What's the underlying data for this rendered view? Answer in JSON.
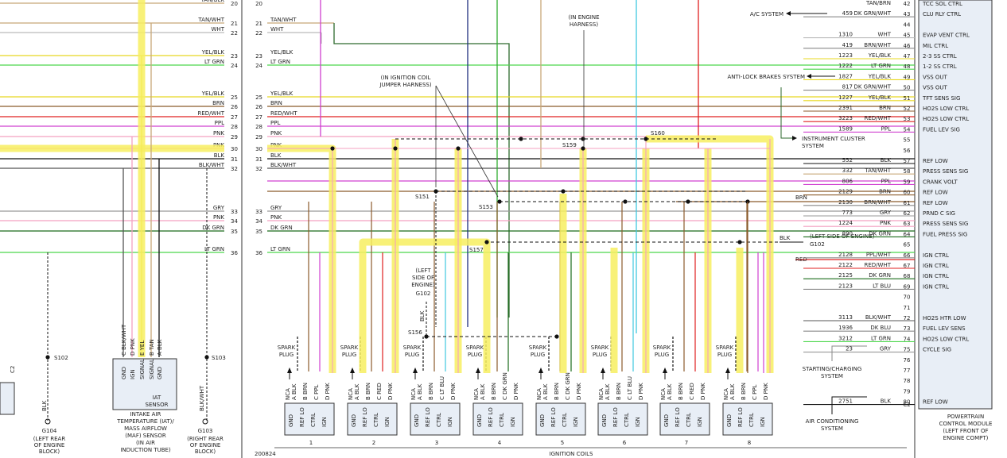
{
  "figure_id": "200824",
  "title": "IGNITION COILS",
  "annotations": {
    "coil_jumper": [
      "(IN IGNITION COIL",
      "JUMPER HARNESS)"
    ],
    "engine_harness": [
      "(IN ENGINE",
      "HARNESS)"
    ],
    "left_side_g102": [
      "(LEFT",
      "SIDE OF",
      "ENGINE)"
    ],
    "left_side_g102_right": "(LEFT SIDE OF ENGINE)"
  },
  "splices": {
    "s151": "S151",
    "s153": "S153",
    "s156": "S156",
    "s157": "S157",
    "s159": "S159",
    "s160": "S160",
    "s102": "S102",
    "s103": "S103"
  },
  "grounds": {
    "g102": "G102",
    "g102r": "G102",
    "g103": "G103",
    "g104": "G104",
    "g103_desc": [
      "(RIGHT REAR",
      "OF ENGINE",
      "BLOCK)"
    ],
    "g104_desc": [
      "(LEFT REAR",
      "OF ENGINE",
      "BLOCK)"
    ]
  },
  "left_panel_wires": [
    {
      "n": "20",
      "color": "TAN/BLK"
    },
    {
      "n": "21",
      "color": "TAN/WHT"
    },
    {
      "n": "22",
      "color": "WHT"
    },
    {
      "n": "23",
      "color": "YEL/BLK"
    },
    {
      "n": "24",
      "color": "LT GRN"
    },
    {
      "n": "25",
      "color": "YEL/BLK"
    },
    {
      "n": "26",
      "color": "BRN"
    },
    {
      "n": "27",
      "color": "RED/WHT"
    },
    {
      "n": "28",
      "color": "PPL"
    },
    {
      "n": "29",
      "color": "PNK"
    },
    {
      "n": "30",
      "color": "PNK"
    },
    {
      "n": "31",
      "color": "BLK"
    },
    {
      "n": "32",
      "color": "BLK/WHT"
    },
    {
      "n": "33",
      "color": "GRY"
    },
    {
      "n": "34",
      "color": "PNK"
    },
    {
      "n": "35",
      "color": "DK GRN"
    },
    {
      "n": "36",
      "color": "LT GRN"
    }
  ],
  "mid_wires": [
    {
      "n": "20",
      "color": ""
    },
    {
      "n": "21",
      "color": "TAN/WHT"
    },
    {
      "n": "22",
      "color": "WHT"
    },
    {
      "n": "23",
      "color": "YEL/BLK"
    },
    {
      "n": "24",
      "color": "LT GRN"
    },
    {
      "n": "25",
      "color": "YEL/BLK"
    },
    {
      "n": "26",
      "color": "BRN"
    },
    {
      "n": "27",
      "color": "RED/WHT"
    },
    {
      "n": "28",
      "color": "PPL"
    },
    {
      "n": "29",
      "color": "PNK"
    },
    {
      "n": "30",
      "color": "PNK"
    },
    {
      "n": "31",
      "color": "BLK"
    },
    {
      "n": "32",
      "color": "BLK/WHT"
    },
    {
      "n": "33",
      "color": "GRY"
    },
    {
      "n": "34",
      "color": "PNK"
    },
    {
      "n": "35",
      "color": "DK GRN"
    },
    {
      "n": "36",
      "color": "LT GRN"
    }
  ],
  "iat_sensor": {
    "pins": [
      "C BLK/WHT",
      "D PNK",
      "E YEL",
      "B TAN",
      "A BLK"
    ],
    "inner": [
      "GND",
      "IGN",
      "SIGNAL",
      "SIGNAL",
      "GND"
    ],
    "label": [
      "IAT",
      "SENSOR"
    ],
    "desc": [
      "INTAKE AIR",
      "TEMPERATURE (IAT)/",
      "MASS AIRFLOW",
      "(MAF) SENSOR",
      "(IN AIR",
      "INDUCTION TUBE)"
    ],
    "c2": "C2"
  },
  "coils": [
    {
      "num": "1",
      "nca": "NCA"
    },
    {
      "num": "2",
      "nca": "NCA"
    },
    {
      "num": "3",
      "nca": "NCA"
    },
    {
      "num": "4",
      "nca": "NCA"
    },
    {
      "num": "5",
      "nca": "NCA"
    },
    {
      "num": "6",
      "nca": "NCA"
    },
    {
      "num": "7",
      "nca": "NCA"
    },
    {
      "num": "8",
      "nca": "NCA"
    }
  ],
  "coil_labels": {
    "spark_plug": [
      "SPARK",
      "PLUG"
    ],
    "inner": [
      "GND",
      "REF LO",
      "CTRL",
      "IGN"
    ],
    "pin_letters": [
      "A",
      "B",
      "C",
      "D"
    ]
  },
  "coil_wires": [
    [
      "BLK",
      "BRN",
      "PPL",
      "PNK"
    ],
    [
      "BLK",
      "BRN",
      "RED",
      "PNK"
    ],
    [
      "BLK",
      "BRN",
      "LT BLU",
      "PNK"
    ],
    [
      "BLK",
      "BRN",
      "DK GRN",
      "PNK"
    ],
    [
      "BLK",
      "BRN",
      "DK GRN",
      "PNK"
    ],
    [
      "BLK",
      "BRN",
      "LT BLU",
      "PNK"
    ],
    [
      "BLK",
      "BRN",
      "RED",
      "PNK"
    ],
    [
      "BLK",
      "BRN",
      "PPL",
      "PNK"
    ]
  ],
  "pcm": {
    "rows": [
      {
        "n": "42",
        "circuit": "",
        "color": "TAN/BRN",
        "name": "TCC SOL CTRL"
      },
      {
        "n": "43",
        "circuit": "459",
        "color": "DK GRN/WHT",
        "name": "CLU RLY CTRL"
      },
      {
        "n": "44",
        "circuit": "",
        "color": "",
        "name": ""
      },
      {
        "n": "45",
        "circuit": "1310",
        "color": "WHT",
        "name": "EVAP VENT CTRL"
      },
      {
        "n": "46",
        "circuit": "419",
        "color": "BRN/WHT",
        "name": "MIL CTRL"
      },
      {
        "n": "47",
        "circuit": "1223",
        "color": "YEL/BLK",
        "name": "2-3 SS CTRL"
      },
      {
        "n": "48",
        "circuit": "1222",
        "color": "LT GRN",
        "name": "1-2 SS CTRL"
      },
      {
        "n": "49",
        "circuit": "1827",
        "color": "YEL/BLK",
        "name": "VSS OUT"
      },
      {
        "n": "50",
        "circuit": "817",
        "color": "DK GRN/WHT",
        "name": "VSS OUT"
      },
      {
        "n": "51",
        "circuit": "1227",
        "color": "YEL/BLK",
        "name": "TFT SENS SIG"
      },
      {
        "n": "52",
        "circuit": "2391",
        "color": "BRN",
        "name": "HO2S LOW CTRL"
      },
      {
        "n": "53",
        "circuit": "3223",
        "color": "RED/WHT",
        "name": "HO2S LOW CTRL"
      },
      {
        "n": "54",
        "circuit": "1589",
        "color": "PPL",
        "name": "FUEL LEV SIG"
      },
      {
        "n": "55",
        "circuit": "",
        "color": "",
        "name": ""
      },
      {
        "n": "56",
        "circuit": "",
        "color": "",
        "name": ""
      },
      {
        "n": "57",
        "circuit": "552",
        "color": "BLK",
        "name": "REF LOW"
      },
      {
        "n": "58",
        "circuit": "332",
        "color": "TAN/WHT",
        "name": "PRESS SENS SIG"
      },
      {
        "n": "59",
        "circuit": "806",
        "color": "PPL",
        "name": "CRANK VOLT"
      },
      {
        "n": "60",
        "circuit": "2129",
        "color": "BRN",
        "name": "REF LOW"
      },
      {
        "n": "61",
        "circuit": "2130",
        "color": "BRN/WHT",
        "name": "REF LOW"
      },
      {
        "n": "62",
        "circuit": "773",
        "color": "GRY",
        "name": "PRND C SIG"
      },
      {
        "n": "63",
        "circuit": "1224",
        "color": "PNK",
        "name": "PRESS SENS SIG"
      },
      {
        "n": "64",
        "circuit": "890",
        "color": "DK GRN",
        "name": "FUEL PRESS SIG"
      },
      {
        "n": "65",
        "circuit": "",
        "color": "",
        "name": ""
      },
      {
        "n": "66",
        "circuit": "2128",
        "color": "PPL/WHT",
        "name": "IGN CTRL"
      },
      {
        "n": "67",
        "circuit": "2122",
        "color": "RED/WHT",
        "name": "IGN CTRL"
      },
      {
        "n": "68",
        "circuit": "2125",
        "color": "DK GRN",
        "name": "IGN CTRL"
      },
      {
        "n": "69",
        "circuit": "2123",
        "color": "LT BLU",
        "name": "IGN CTRL"
      },
      {
        "n": "70",
        "circuit": "",
        "color": "",
        "name": ""
      },
      {
        "n": "71",
        "circuit": "",
        "color": "",
        "name": ""
      },
      {
        "n": "72",
        "circuit": "3113",
        "color": "BLK/WHT",
        "name": "HO2S HTR LOW"
      },
      {
        "n": "73",
        "circuit": "1936",
        "color": "DK BLU",
        "name": "FUEL LEV SENS"
      },
      {
        "n": "74",
        "circuit": "3212",
        "color": "LT GRN",
        "name": "HO2S LOW CTRL"
      },
      {
        "n": "75",
        "circuit": "23",
        "color": "GRY",
        "name": "CYCLE SIG"
      },
      {
        "n": "76",
        "circuit": "",
        "color": "",
        "name": ""
      },
      {
        "n": "77",
        "circuit": "",
        "color": "",
        "name": ""
      },
      {
        "n": "78",
        "circuit": "",
        "color": "",
        "name": ""
      },
      {
        "n": "79",
        "circuit": "",
        "color": "",
        "name": ""
      },
      {
        "n": "80",
        "circuit": "2751",
        "color": "BLK",
        "name": "REF LOW"
      }
    ],
    "connector": "C2",
    "desc": [
      "POWERTRAIN",
      "CONTROL MODULE",
      "(LEFT FRONT OF",
      "ENGINE COMPT)"
    ]
  },
  "external": {
    "ac": "A/C SYSTEM",
    "abs": "ANTI-LOCK BRAKES SYSTEM",
    "cluster": [
      "INSTRUMENT CLUSTER",
      "SYSTEM"
    ],
    "starting": [
      "STARTING/CHARGING",
      "SYSTEM"
    ],
    "aircon": [
      "AIR CONDITIONING",
      "SYSTEM"
    ],
    "blk": "BLK",
    "red": "RED",
    "brn": "BRN"
  },
  "colors": {
    "pink": "#f4a0c0",
    "highlight": "#f7ef60",
    "tan": "#c8a878",
    "brown": "#8b5a2b",
    "green": "#2fae2f",
    "ltgreen": "#4cd64c",
    "dkgreen": "#1a6b1a",
    "red": "#e02020",
    "ppl": "#d040d0",
    "ltblu": "#40c8e0",
    "dkblu": "#203080",
    "gry": "#999999",
    "yel": "#e8d820"
  }
}
